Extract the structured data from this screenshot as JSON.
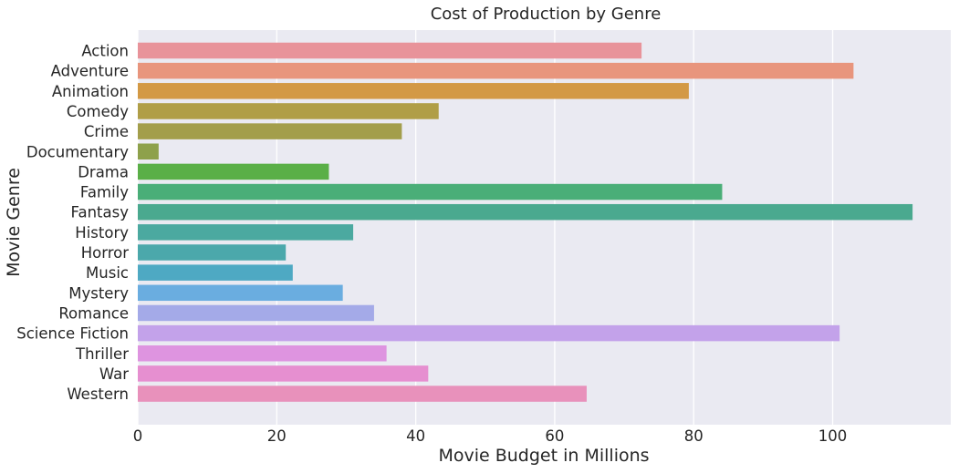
{
  "chart_data": {
    "type": "bar",
    "orientation": "horizontal",
    "title": "Cost of Production by Genre",
    "xlabel": "Movie Budget in Millions",
    "ylabel": "Movie Genre",
    "xlim": [
      0,
      117
    ],
    "xticks": [
      0,
      20,
      40,
      60,
      80,
      100
    ],
    "grid": true,
    "categories": [
      "Action",
      "Adventure",
      "Animation",
      "Comedy",
      "Crime",
      "Documentary",
      "Drama",
      "Family",
      "Fantasy",
      "History",
      "Horror",
      "Music",
      "Mystery",
      "Romance",
      "Science Fiction",
      "Thriller",
      "War",
      "Western"
    ],
    "values": [
      72.5,
      103.0,
      79.3,
      43.3,
      38.0,
      3.0,
      27.5,
      84.1,
      111.5,
      31.0,
      21.3,
      22.3,
      29.5,
      34.0,
      101.0,
      35.8,
      41.8,
      64.6
    ],
    "colors": [
      "#e8939a",
      "#e8957d",
      "#d39945",
      "#b09e47",
      "#a39e4b",
      "#8ea14b",
      "#5aaf47",
      "#4aae78",
      "#4aa98f",
      "#4ba9a0",
      "#4ba8ab",
      "#4ea9c3",
      "#6aade0",
      "#a4aae8",
      "#c3a2ea",
      "#de94e0",
      "#e68fd0",
      "#e891bb"
    ],
    "background": "#eaeaf2"
  }
}
